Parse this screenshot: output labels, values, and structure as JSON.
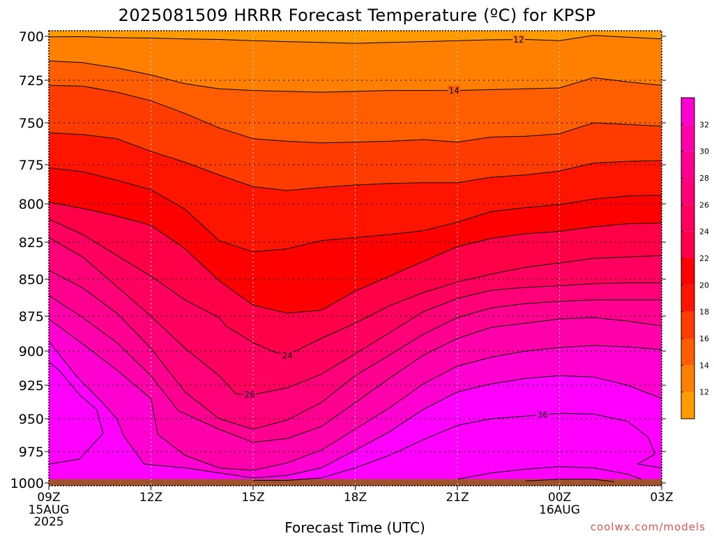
{
  "chart_data": {
    "type": "heatmap",
    "title": "2025081509 HRRR Forecast Temperature (ºC) for KPSP",
    "xlabel": "Forecast Time (UTC)",
    "ylabel": "",
    "x_ticks": [
      {
        "hour": 0,
        "label": "09Z",
        "sub": [
          "15AUG",
          "2025"
        ]
      },
      {
        "hour": 3,
        "label": "12Z",
        "sub": []
      },
      {
        "hour": 6,
        "label": "15Z",
        "sub": []
      },
      {
        "hour": 9,
        "label": "18Z",
        "sub": []
      },
      {
        "hour": 12,
        "label": "21Z",
        "sub": []
      },
      {
        "hour": 15,
        "label": "00Z",
        "sub": [
          "16AUG"
        ]
      },
      {
        "hour": 18,
        "label": "03Z",
        "sub": []
      }
    ],
    "y_ticks": [
      700,
      725,
      750,
      775,
      800,
      825,
      850,
      875,
      900,
      925,
      950,
      975,
      1000
    ],
    "ylim": [
      1000,
      700
    ],
    "x_range": [
      0,
      18
    ],
    "grid": true,
    "colorbar": {
      "levels": [
        10,
        12,
        14,
        16,
        18,
        20,
        22,
        24,
        26,
        28,
        30,
        32,
        34
      ],
      "tick_labels": [
        12,
        14,
        16,
        18,
        20,
        22,
        24,
        26,
        28,
        30,
        32
      ],
      "colors": [
        "#ff9a00",
        "#ff7f00",
        "#ff5e00",
        "#ff3c00",
        "#ff1400",
        "#ff0000",
        "#ff0048",
        "#ff005e",
        "#ff0078",
        "#ff0090",
        "#ff00aa",
        "#ff00d0",
        "#ff00ff"
      ]
    },
    "contours": [
      {
        "value": 12,
        "label": "12",
        "label_at_hour": 13.8,
        "points": [
          [
            0,
            700.3
          ],
          [
            1,
            700.2
          ],
          [
            2,
            700.8
          ],
          [
            3,
            701
          ],
          [
            4,
            701.5
          ],
          [
            5,
            701.8
          ],
          [
            6,
            702.5
          ],
          [
            7,
            703
          ],
          [
            8,
            703.5
          ],
          [
            9,
            704
          ],
          [
            10,
            703.5
          ],
          [
            11,
            703
          ],
          [
            12,
            702.5
          ],
          [
            13,
            702
          ],
          [
            14,
            701.8
          ],
          [
            15,
            702.5
          ],
          [
            16,
            699.5
          ],
          [
            17,
            700.5
          ],
          [
            18,
            701.5
          ]
        ]
      },
      {
        "value": 14,
        "label": "14",
        "label_at_hour": 11.9,
        "points": [
          [
            0,
            714
          ],
          [
            1,
            715
          ],
          [
            2,
            718
          ],
          [
            3,
            722
          ],
          [
            4,
            727
          ],
          [
            5,
            730
          ],
          [
            6,
            731
          ],
          [
            7,
            731.5
          ],
          [
            8,
            732
          ],
          [
            9,
            731.5
          ],
          [
            10,
            731
          ],
          [
            11,
            731
          ],
          [
            12,
            731
          ],
          [
            13,
            730.5
          ],
          [
            14,
            730
          ],
          [
            15,
            729.5
          ],
          [
            16,
            723.5
          ],
          [
            17,
            726
          ],
          [
            18,
            728
          ]
        ]
      },
      {
        "value": 16,
        "label": "",
        "points": [
          [
            0,
            728
          ],
          [
            1,
            728.5
          ],
          [
            2,
            732
          ],
          [
            3,
            737
          ],
          [
            4,
            744.5
          ],
          [
            5,
            753
          ],
          [
            6,
            759.5
          ],
          [
            7,
            761
          ],
          [
            8,
            762
          ],
          [
            9,
            761.5
          ],
          [
            10,
            761
          ],
          [
            11,
            760
          ],
          [
            12,
            761.5
          ],
          [
            13,
            758.5
          ],
          [
            14,
            758
          ],
          [
            15,
            756.5
          ],
          [
            16,
            750
          ],
          [
            17,
            751
          ],
          [
            18,
            752
          ]
        ]
      },
      {
        "value": 18,
        "label": "",
        "points": [
          [
            0,
            756
          ],
          [
            1,
            757
          ],
          [
            2,
            759.5
          ],
          [
            3,
            767
          ],
          [
            4,
            773.5
          ],
          [
            5,
            781.5
          ],
          [
            6,
            789
          ],
          [
            7,
            791.5
          ],
          [
            8,
            789.5
          ],
          [
            9,
            788
          ],
          [
            10,
            787
          ],
          [
            11,
            786.5
          ],
          [
            12,
            786.5
          ],
          [
            13,
            783
          ],
          [
            14,
            781.5
          ],
          [
            15,
            779
          ],
          [
            16,
            774
          ],
          [
            17,
            773
          ],
          [
            18,
            772.5
          ]
        ]
      },
      {
        "value": 20,
        "label": "",
        "points": [
          [
            0,
            777
          ],
          [
            1,
            779.5
          ],
          [
            2,
            785
          ],
          [
            3,
            791
          ],
          [
            4,
            803.5
          ],
          [
            5,
            824
          ],
          [
            6,
            831.5
          ],
          [
            7,
            829.5
          ],
          [
            8,
            824
          ],
          [
            9,
            822
          ],
          [
            10,
            820
          ],
          [
            11,
            817.5
          ],
          [
            12,
            812
          ],
          [
            13,
            805
          ],
          [
            14,
            802.5
          ],
          [
            15,
            800.5
          ],
          [
            16,
            797
          ],
          [
            17,
            795
          ],
          [
            18,
            794.5
          ]
        ]
      },
      {
        "value": 22,
        "label": "",
        "points": [
          [
            0,
            799
          ],
          [
            1,
            803
          ],
          [
            2,
            808
          ],
          [
            3,
            814
          ],
          [
            4,
            829.5
          ],
          [
            5,
            851
          ],
          [
            6,
            867.5
          ],
          [
            7,
            873
          ],
          [
            8,
            871
          ],
          [
            9,
            858
          ],
          [
            10,
            848
          ],
          [
            11,
            838
          ],
          [
            12,
            828
          ],
          [
            13,
            822.5
          ],
          [
            14,
            819.5
          ],
          [
            15,
            818
          ],
          [
            16,
            815
          ],
          [
            17,
            813
          ],
          [
            18,
            812.5
          ]
        ]
      },
      {
        "value": 24,
        "label": "24",
        "label_at_hour": 7,
        "points": [
          [
            0,
            810
          ],
          [
            1,
            820
          ],
          [
            2,
            834
          ],
          [
            3,
            848
          ],
          [
            4,
            864
          ],
          [
            5,
            876
          ],
          [
            5.2,
            882
          ],
          [
            6,
            894
          ],
          [
            6.6,
            900.5
          ],
          [
            7,
            903
          ],
          [
            8,
            891
          ],
          [
            9,
            880
          ],
          [
            10,
            868
          ],
          [
            11,
            859
          ],
          [
            12,
            852
          ],
          [
            13,
            846.5
          ],
          [
            14,
            842
          ],
          [
            15,
            839
          ],
          [
            16,
            836
          ],
          [
            17,
            835
          ],
          [
            18,
            834
          ]
        ]
      },
      {
        "value": 26,
        "label": "26",
        "label_at_hour": 5.9,
        "points": [
          [
            0,
            822
          ],
          [
            1,
            835
          ],
          [
            2,
            855
          ],
          [
            3,
            875
          ],
          [
            4,
            898
          ],
          [
            5,
            918
          ],
          [
            5.5,
            931.5
          ],
          [
            6,
            932
          ],
          [
            7,
            927
          ],
          [
            8,
            917
          ],
          [
            9,
            902
          ],
          [
            10,
            887
          ],
          [
            11,
            872
          ],
          [
            12,
            863
          ],
          [
            13,
            857.5
          ],
          [
            14,
            855.5
          ],
          [
            15,
            854.5
          ],
          [
            16,
            853
          ],
          [
            17,
            852.5
          ],
          [
            18,
            852.5
          ]
        ]
      },
      {
        "value": 28,
        "label": "",
        "points": [
          [
            0,
            844
          ],
          [
            1,
            856
          ],
          [
            2,
            873
          ],
          [
            3,
            898
          ],
          [
            4,
            930
          ],
          [
            5,
            950
          ],
          [
            6,
            958
          ],
          [
            7,
            951
          ],
          [
            8,
            938
          ],
          [
            9,
            918
          ],
          [
            10,
            903
          ],
          [
            11,
            888
          ],
          [
            12,
            876
          ],
          [
            13,
            869.5
          ],
          [
            14,
            866.5
          ],
          [
            15,
            865
          ],
          [
            16,
            864
          ],
          [
            17,
            864
          ],
          [
            18,
            864
          ]
        ]
      },
      {
        "value": 30,
        "label": "",
        "points": [
          [
            0,
            861
          ],
          [
            1,
            876
          ],
          [
            2,
            894
          ],
          [
            3,
            918
          ],
          [
            3.8,
            944
          ],
          [
            5,
            958
          ],
          [
            6,
            968
          ],
          [
            7,
            965
          ],
          [
            8,
            956
          ],
          [
            9,
            938
          ],
          [
            10,
            920
          ],
          [
            11,
            903
          ],
          [
            12,
            891
          ],
          [
            13,
            883
          ],
          [
            14,
            880
          ],
          [
            15,
            877
          ],
          [
            16,
            876
          ],
          [
            17,
            878.5
          ],
          [
            18,
            882
          ]
        ]
      },
      {
        "value": 32,
        "label": "",
        "points": [
          [
            0,
            877
          ],
          [
            1,
            895
          ],
          [
            2,
            914
          ],
          [
            3,
            935
          ],
          [
            3.2,
            962
          ],
          [
            4,
            978
          ],
          [
            5,
            988
          ],
          [
            6,
            990
          ],
          [
            7,
            984
          ],
          [
            8,
            974
          ],
          [
            9,
            958
          ],
          [
            10,
            942
          ],
          [
            11,
            924
          ],
          [
            12,
            911
          ],
          [
            13,
            904.5
          ],
          [
            14,
            900
          ],
          [
            15,
            897.5
          ],
          [
            16,
            896
          ],
          [
            17,
            897
          ],
          [
            18,
            899
          ]
        ]
      },
      {
        "value": 34,
        "label": "",
        "points": [
          [
            0,
            893
          ],
          [
            0.8,
            918
          ],
          [
            1.5,
            936
          ],
          [
            2,
            950
          ],
          [
            2.2,
            963
          ],
          [
            2.8,
            985
          ],
          [
            4,
            988
          ],
          [
            5,
            992
          ],
          [
            6,
            996
          ],
          [
            7,
            994
          ],
          [
            8,
            988
          ],
          [
            9,
            974
          ],
          [
            10,
            960
          ],
          [
            11,
            943
          ],
          [
            12,
            930
          ],
          [
            13,
            924
          ],
          [
            14,
            920
          ],
          [
            15,
            918
          ],
          [
            16,
            919
          ],
          [
            17,
            925
          ],
          [
            18,
            935
          ]
        ]
      },
      {
        "value": 36,
        "label": "36",
        "label_at_hour": 14.5,
        "points": [
          [
            0,
            985
          ],
          [
            0.9,
            981
          ],
          [
            1.6,
            961
          ],
          [
            1.4,
            943
          ],
          [
            0.9,
            932
          ],
          [
            0.3,
            914
          ],
          [
            0.0,
            908
          ],
          [
            6,
            998
          ],
          [
            7,
            998
          ],
          [
            8,
            996
          ],
          [
            9,
            988
          ],
          [
            10,
            978
          ],
          [
            11,
            966
          ],
          [
            12,
            955
          ],
          [
            13,
            950
          ],
          [
            14,
            948
          ],
          [
            15,
            946
          ],
          [
            16,
            946.5
          ],
          [
            17,
            952
          ],
          [
            17.6,
            964
          ],
          [
            17.8,
            977
          ],
          [
            17.3,
            985
          ],
          [
            18,
            988
          ]
        ]
      },
      {
        "value": 38,
        "label": "",
        "points": [
          [
            12,
            997
          ],
          [
            13,
            992
          ],
          [
            14,
            989
          ],
          [
            15,
            987
          ],
          [
            16,
            988
          ],
          [
            17,
            993
          ],
          [
            17.4,
            997
          ]
        ]
      },
      {
        "value": 40,
        "label": "",
        "points": [
          [
            14,
            998.5
          ],
          [
            15,
            997
          ],
          [
            16,
            997
          ],
          [
            16.6,
            999
          ]
        ]
      }
    ],
    "surface": {
      "pressure_hpa": 997,
      "color": "#a0522d"
    },
    "credit": "coolwx.com/models"
  }
}
